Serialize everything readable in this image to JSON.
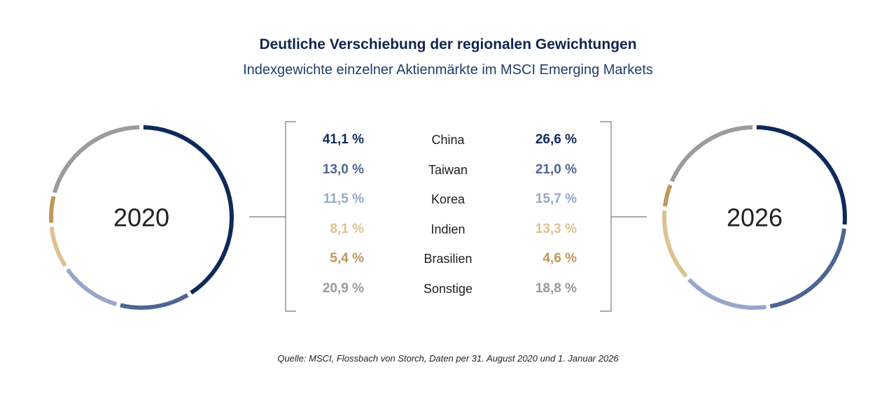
{
  "header": {
    "title": "Deutliche Verschiebung der regionalen Gewichtungen",
    "subtitle": "Indexgewichte einzelner Aktienmärkte im MSCI Emerging Markets"
  },
  "source": "Quelle: MSCI, Flossbach von Storch, Daten per 31. August 2020 und 1. Januar 2026",
  "colors": {
    "China": "#0e2a5a",
    "Taiwan": "#4d6592",
    "Korea": "#98a7c9",
    "Indien": "#dcc28f",
    "Brasilien": "#c1965a",
    "Sonstige": "#9b9b9b"
  },
  "chart_data": {
    "type": "pie",
    "categories": [
      "China",
      "Taiwan",
      "Korea",
      "Indien",
      "Brasilien",
      "Sonstige"
    ],
    "series": [
      {
        "name": "2020",
        "values": [
          41.1,
          13.0,
          11.5,
          8.1,
          5.4,
          20.9
        ],
        "labels": [
          "41,1 %",
          "13,0 %",
          "11,5 %",
          "8,1 %",
          "5,4 %",
          "20,9 %"
        ]
      },
      {
        "name": "2026",
        "values": [
          26.6,
          21.0,
          15.7,
          13.3,
          4.6,
          18.8
        ],
        "labels": [
          "26,6 %",
          "21,0 %",
          "15,7 %",
          "13,3 %",
          "4,6 %",
          "18,8 %"
        ]
      }
    ]
  }
}
